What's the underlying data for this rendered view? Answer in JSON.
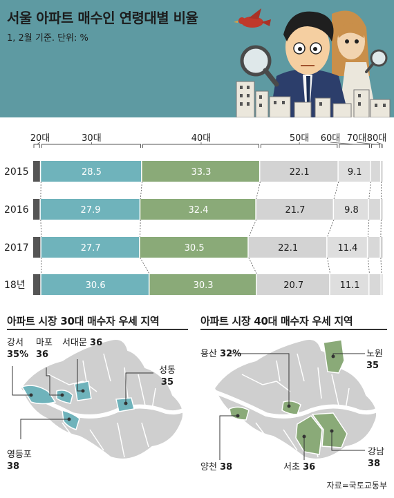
{
  "header": {
    "title": "서울 아파트 매수인 연령대별 비율",
    "subtitle": "1, 2월 기준. 단위: %"
  },
  "chart_data": {
    "type": "bar",
    "stacked": true,
    "orientation": "horizontal",
    "age_groups": [
      "20대",
      "30대",
      "40대",
      "50대",
      "60대",
      "70대",
      "80대"
    ],
    "rows": [
      {
        "label": "2015",
        "values": [
          2.2,
          28.5,
          33.3,
          22.1,
          9.1,
          2.9,
          0.7
        ]
      },
      {
        "label": "2016",
        "values": [
          2.1,
          27.9,
          32.4,
          21.7,
          9.8,
          3.4,
          0.7
        ]
      },
      {
        "label": "2017",
        "values": [
          2.3,
          27.7,
          30.5,
          22.1,
          11.4,
          3.6,
          0.8
        ]
      },
      {
        "label": "18년",
        "values": [
          2.3,
          30.6,
          30.3,
          20.7,
          11.1,
          3.4,
          0.6
        ]
      }
    ],
    "labeled_groups": [
      1,
      2,
      3,
      4
    ],
    "colors": [
      "#555555",
      "#6fb3bb",
      "#8aaa78",
      "#d3d3d3",
      "#dedede",
      "#d8d8d8",
      "#cfcfcf"
    ],
    "label_colors": [
      "#ffffff",
      "#ffffff",
      "#ffffff",
      "#1c1c1c",
      "#1c1c1c",
      "#1c1c1c",
      "#1c1c1c"
    ]
  },
  "map30": {
    "title": "아파트 시장 30대 매수자 우세 지역",
    "highlight_color": "#6fb3bb",
    "regions": [
      {
        "name": "강서",
        "value": "35%"
      },
      {
        "name": "마포",
        "value": "36"
      },
      {
        "name": "서대문",
        "value": "36"
      },
      {
        "name": "성동",
        "value": "35"
      },
      {
        "name": "영등포",
        "value": "38"
      }
    ]
  },
  "map40": {
    "title": "아파트 시장 40대 매수자 우세 지역",
    "highlight_color": "#8aaa78",
    "regions": [
      {
        "name": "용산",
        "value": "32%"
      },
      {
        "name": "노원",
        "value": "35"
      },
      {
        "name": "양천",
        "value": "38"
      },
      {
        "name": "서초",
        "value": "36"
      },
      {
        "name": "강남",
        "value": "38"
      }
    ]
  },
  "source": "자료=국토교통부"
}
